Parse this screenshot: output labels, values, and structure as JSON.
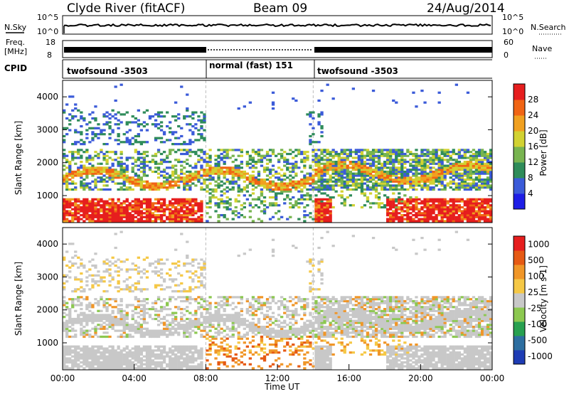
{
  "header": {
    "station": "Clyde River (fitACF)",
    "beam": "Beam 09",
    "date": "24/Aug/2014"
  },
  "panels": {
    "nsky_label": "N.Sky",
    "nsearch_label": "N.Search",
    "noise_ticks_left": [
      "10^5",
      "10^0"
    ],
    "noise_ticks_right": [
      "10^5",
      "10^0"
    ],
    "freq_label": "Freq.",
    "freq_unit": "[MHz]",
    "freq_ticks": [
      "18",
      "8"
    ],
    "nave_label": "Nave",
    "nave_ticks": [
      "60",
      "0"
    ],
    "cpid_label": "CPID",
    "cpid_segments": [
      {
        "label": "twofsound -3503",
        "start_hour": 0,
        "end_hour": 8
      },
      {
        "label": "normal (fast) 151",
        "start_hour": 8,
        "end_hour": 14
      },
      {
        "label": "twofsound -3503",
        "start_hour": 14,
        "end_hour": 24
      }
    ]
  },
  "chart_data": [
    {
      "type": "heatmap",
      "name": "power",
      "ylabel": "Slant Range [km]",
      "ylim": [
        180,
        4500
      ],
      "yticks": [
        1000,
        2000,
        3000,
        4000
      ],
      "xlim": [
        0,
        24
      ],
      "colorbar": {
        "label": "Power [dB]",
        "ticks": [
          "4",
          "8",
          "12",
          "16",
          "20",
          "24",
          "28"
        ],
        "colors": [
          "#1e1ee6",
          "#3b5bd9",
          "#2f8c5a",
          "#78b450",
          "#d2d232",
          "#f0a020",
          "#f06414",
          "#e61e1e"
        ]
      },
      "bands": [
        {
          "range_km": [
            200,
            900
          ],
          "dominant": "28"
        },
        {
          "range_km": [
            1300,
            2000
          ],
          "dominant": "16"
        },
        {
          "range_km": [
            2500,
            3500
          ],
          "dominant": "8"
        }
      ]
    },
    {
      "type": "heatmap",
      "name": "velocity",
      "ylabel": "Slant Range [km]",
      "xlabel": "Time UT",
      "ylim": [
        180,
        4500
      ],
      "yticks": [
        1000,
        2000,
        3000,
        4000
      ],
      "xlim": [
        0,
        24
      ],
      "xticks": [
        "00:00",
        "04:00",
        "08:00",
        "12:00",
        "16:00",
        "20:00",
        "00:00"
      ],
      "colorbar": {
        "label": "Velocity [m s-1]",
        "ticks": [
          "1000",
          "500",
          "100",
          "25",
          "-25",
          "-100",
          "-500",
          "-1000"
        ],
        "colors": [
          "#1e3cb4",
          "#2d6ea0",
          "#28a050",
          "#8cc850",
          "#c8c8c8",
          "#f5c846",
          "#f09628",
          "#e65a14",
          "#e61e1e"
        ]
      }
    }
  ]
}
